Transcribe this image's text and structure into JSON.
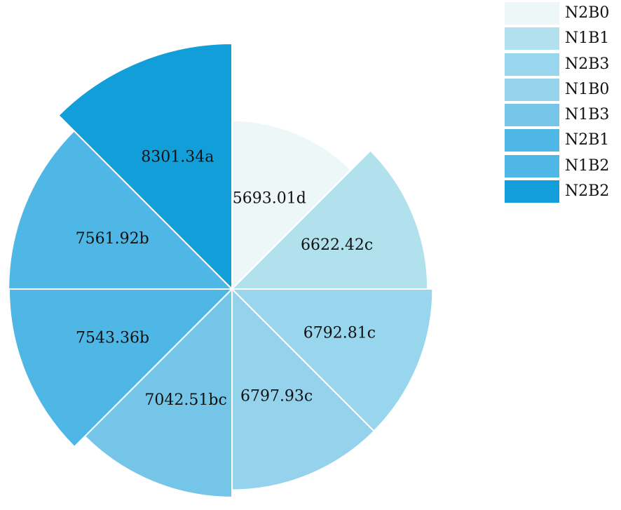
{
  "chart_data": {
    "type": "pie",
    "subtype": "rose",
    "title": "",
    "categories": [
      "N2B0",
      "N1B1",
      "N2B3",
      "N1B0",
      "N1B3",
      "N2B1",
      "N1B2",
      "N2B2"
    ],
    "values": [
      5693.01,
      6622.42,
      6792.81,
      6797.93,
      7042.51,
      7543.36,
      7561.92,
      8301.34
    ],
    "labels": [
      "5693.01d",
      "6622.42c",
      "6792.81c",
      "6797.93c",
      "7042.51bc",
      "7543.36b",
      "7561.92b",
      "8301.34a"
    ],
    "colors": [
      "#eef7f7",
      "#b2e1ee",
      "#98d6ee",
      "#95d3ed",
      "#74c5e8",
      "#4eb7e5",
      "#4eb7e5",
      "#129fd9"
    ],
    "legend_position": "top-right",
    "legend": [
      {
        "name": "N2B0",
        "color": "#eef7f7"
      },
      {
        "name": "N1B1",
        "color": "#b2e1ee"
      },
      {
        "name": "N2B3",
        "color": "#98d6ee"
      },
      {
        "name": "N1B0",
        "color": "#95d3ed"
      },
      {
        "name": "N1B3",
        "color": "#74c5e8"
      },
      {
        "name": "N2B1",
        "color": "#4eb7e5"
      },
      {
        "name": "N1B2",
        "color": "#4eb7e5"
      },
      {
        "name": "N2B2",
        "color": "#129fd9"
      }
    ]
  }
}
